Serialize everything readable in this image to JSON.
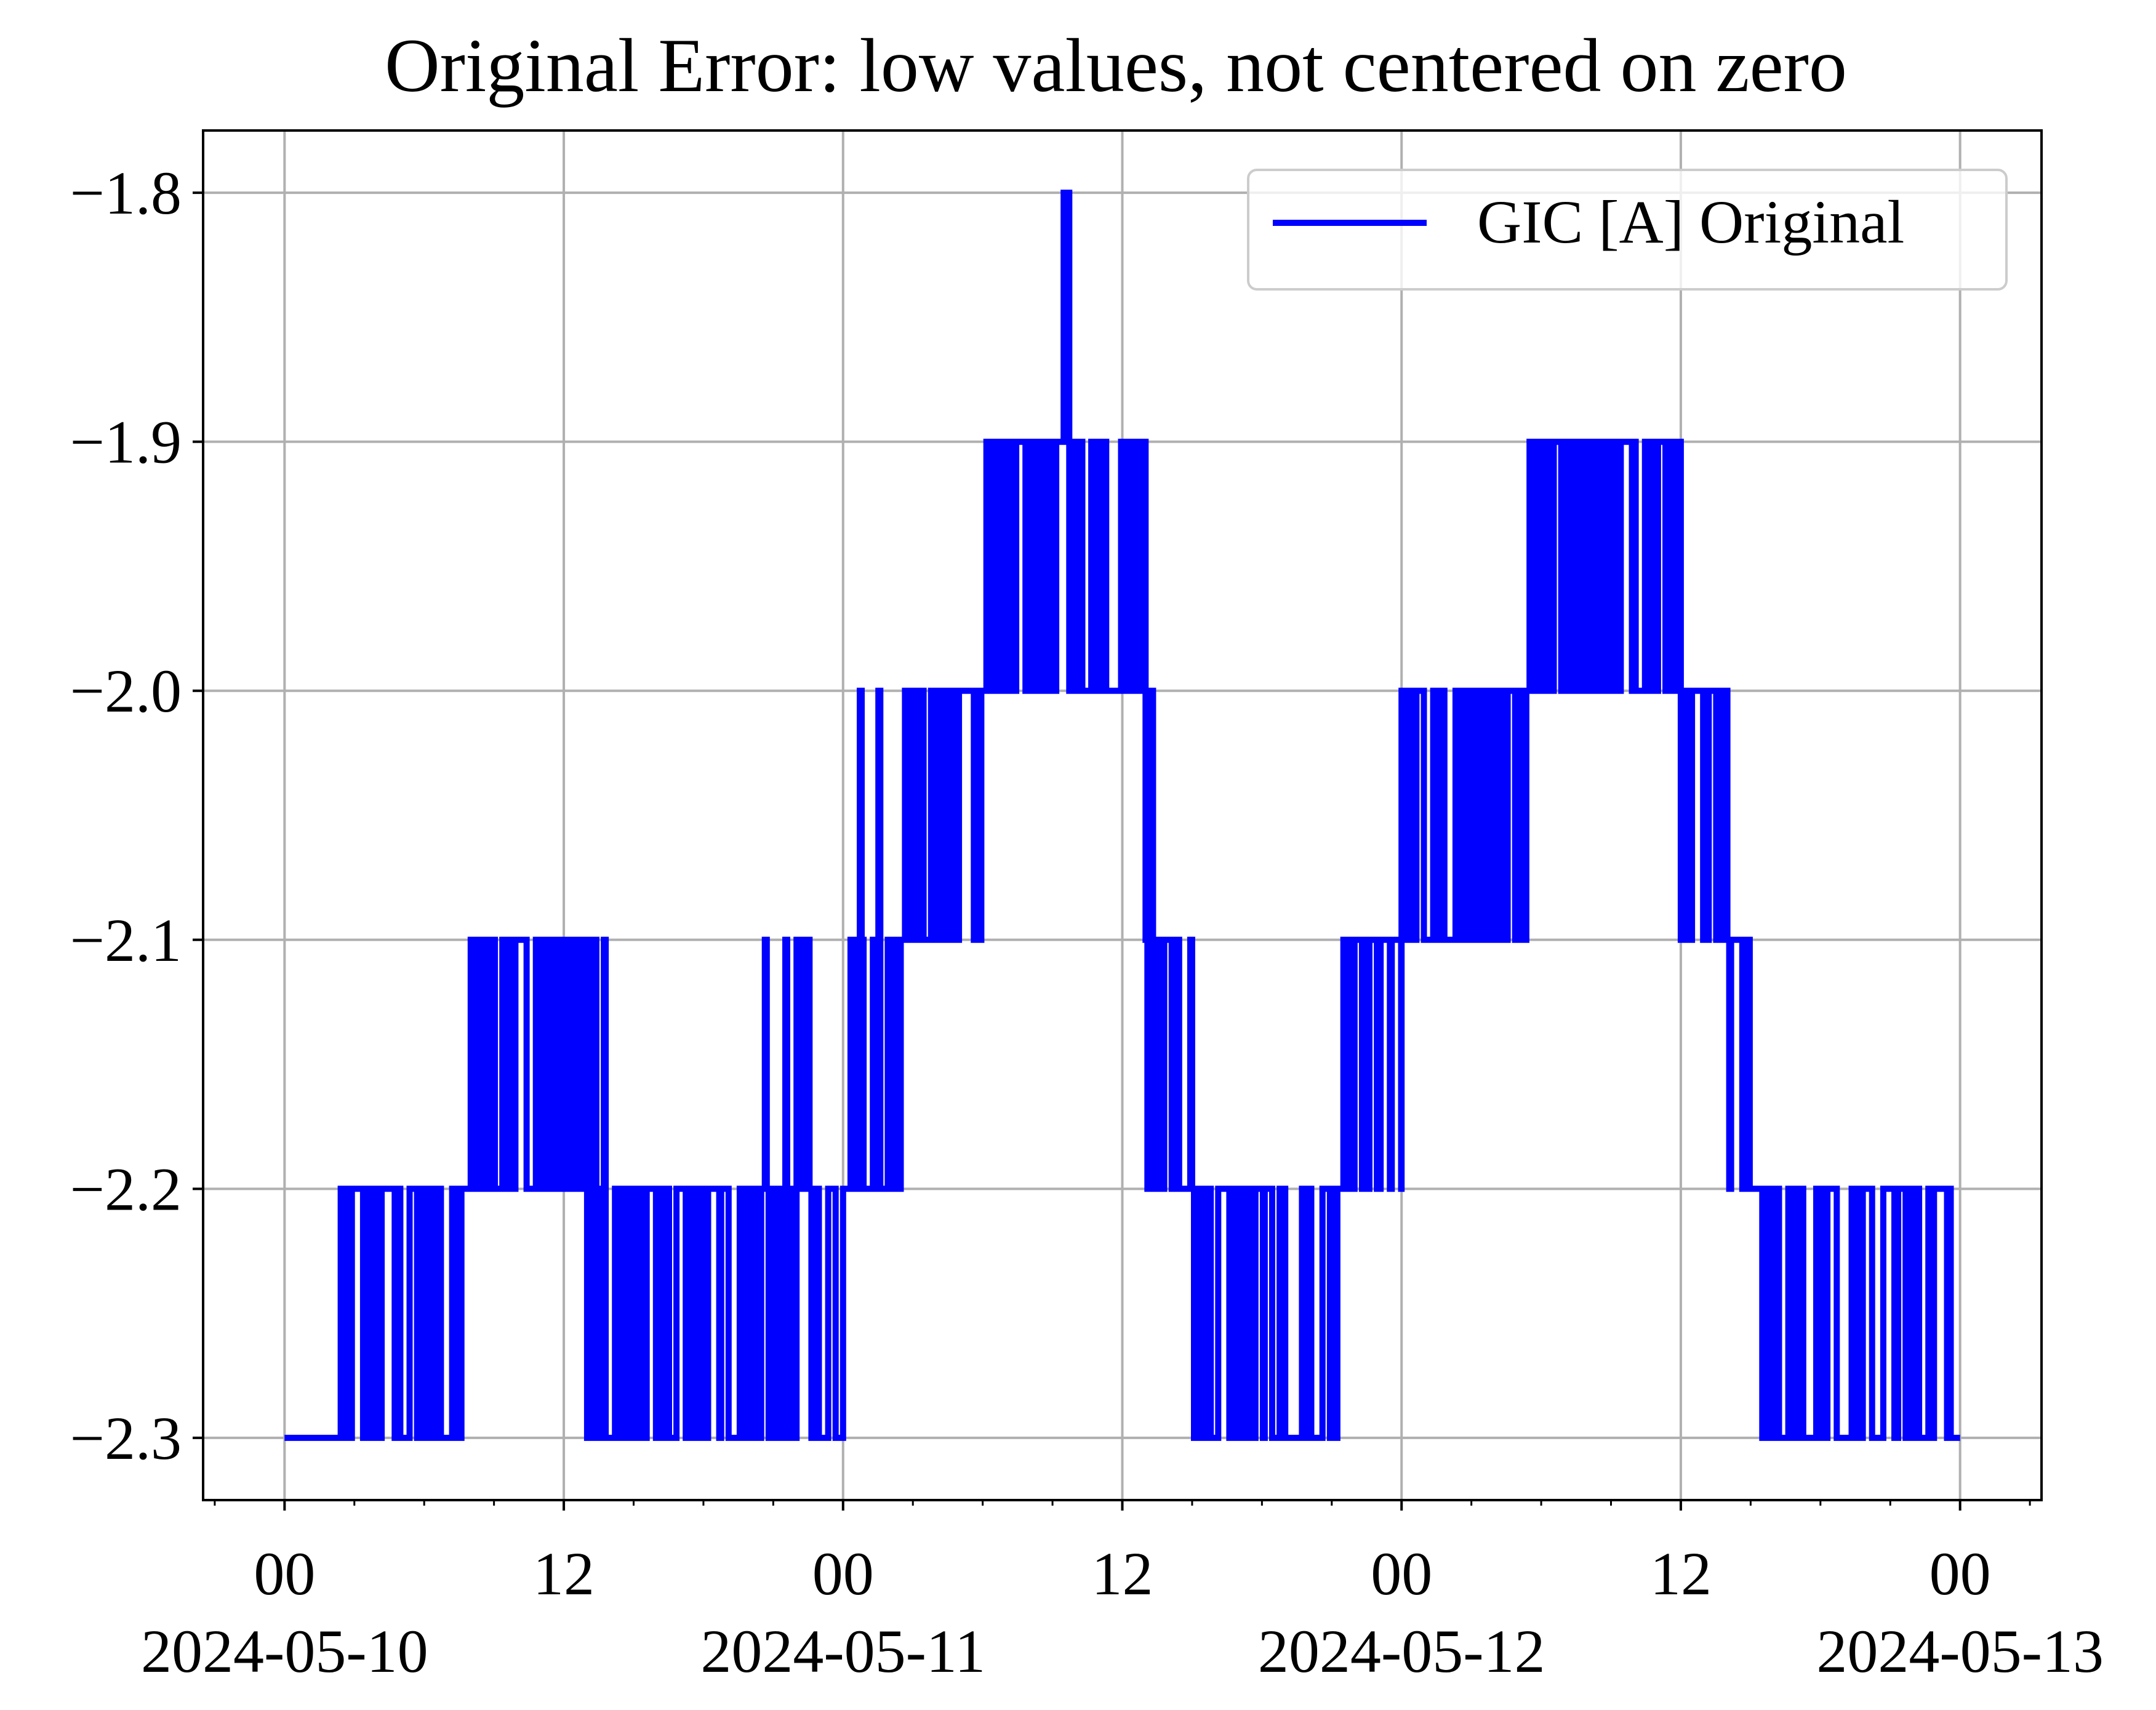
{
  "chart_data": {
    "type": "line",
    "title": "Original Error: low values, not centered on zero",
    "xlabel": "",
    "ylabel": "",
    "x_type": "datetime",
    "xlim": [
      "2024-05-09T20:30",
      "2024-05-13T03:30"
    ],
    "ylim": [
      -2.325,
      -1.775
    ],
    "y_ticks": [
      -2.3,
      -2.2,
      -2.1,
      -2.0,
      -1.9,
      -1.8
    ],
    "y_tick_labels": [
      "−2.3",
      "−2.2",
      "−2.1",
      "−2.0",
      "−1.9",
      "−1.8"
    ],
    "x_ticks": [
      {
        "t": "2024-05-10T00:00",
        "hour": "00",
        "date": "2024-05-10"
      },
      {
        "t": "2024-05-10T12:00",
        "hour": "12",
        "date": ""
      },
      {
        "t": "2024-05-11T00:00",
        "hour": "00",
        "date": "2024-05-11"
      },
      {
        "t": "2024-05-11T12:00",
        "hour": "12",
        "date": ""
      },
      {
        "t": "2024-05-12T00:00",
        "hour": "00",
        "date": "2024-05-12"
      },
      {
        "t": "2024-05-12T12:00",
        "hour": "12",
        "date": ""
      },
      {
        "t": "2024-05-13T00:00",
        "hour": "00",
        "date": "2024-05-13"
      }
    ],
    "minor_tick_hours": 3,
    "grid": true,
    "legend": {
      "position": "top-right",
      "entries": [
        "GIC [A] Original"
      ]
    },
    "series": [
      {
        "name": "GIC [A] Original",
        "color": "#0000ff",
        "step_segments": [
          {
            "from": "2024-05-10T00:00",
            "to": "2024-05-10T02:20",
            "min": -2.3,
            "max": -2.3
          },
          {
            "from": "2024-05-10T02:20",
            "to": "2024-05-10T06:00",
            "min": -2.3,
            "max": -2.2
          },
          {
            "from": "2024-05-10T06:00",
            "to": "2024-05-10T08:00",
            "min": -2.3,
            "max": -2.2
          },
          {
            "from": "2024-05-10T08:00",
            "to": "2024-05-10T13:00",
            "min": -2.2,
            "max": -2.1
          },
          {
            "from": "2024-05-10T13:00",
            "to": "2024-05-10T15:00",
            "min": -2.3,
            "max": -2.1
          },
          {
            "from": "2024-05-10T15:00",
            "to": "2024-05-10T20:00",
            "min": -2.3,
            "max": -2.2
          },
          {
            "from": "2024-05-10T20:00",
            "to": "2024-05-11T00:00",
            "min": -2.3,
            "max": -2.1
          },
          {
            "from": "2024-05-11T00:00",
            "to": "2024-05-11T02:30",
            "min": -2.2,
            "max": -2.0
          },
          {
            "from": "2024-05-11T02:30",
            "to": "2024-05-11T06:00",
            "min": -2.1,
            "max": -2.0
          },
          {
            "from": "2024-05-11T06:00",
            "to": "2024-05-11T09:00",
            "min": -2.0,
            "max": -1.9
          },
          {
            "from": "2024-05-11T09:00",
            "to": "2024-05-11T10:40",
            "min": -2.0,
            "max": -1.8
          },
          {
            "from": "2024-05-11T10:40",
            "to": "2024-05-11T13:00",
            "min": -2.0,
            "max": -1.9
          },
          {
            "from": "2024-05-11T13:00",
            "to": "2024-05-11T15:00",
            "min": -2.2,
            "max": -2.0
          },
          {
            "from": "2024-05-11T15:00",
            "to": "2024-05-11T21:30",
            "min": -2.3,
            "max": -2.2
          },
          {
            "from": "2024-05-11T21:30",
            "to": "2024-05-12T00:00",
            "min": -2.2,
            "max": -2.1
          },
          {
            "from": "2024-05-12T00:00",
            "to": "2024-05-12T05:30",
            "min": -2.1,
            "max": -2.0
          },
          {
            "from": "2024-05-12T05:30",
            "to": "2024-05-12T12:00",
            "min": -2.0,
            "max": -1.9
          },
          {
            "from": "2024-05-12T12:00",
            "to": "2024-05-12T14:00",
            "min": -2.1,
            "max": -2.0
          },
          {
            "from": "2024-05-12T14:00",
            "to": "2024-05-12T15:30",
            "min": -2.2,
            "max": -2.1
          },
          {
            "from": "2024-05-12T15:30",
            "to": "2024-05-12T22:00",
            "min": -2.3,
            "max": -2.2
          },
          {
            "from": "2024-05-12T22:00",
            "to": "2024-05-13T00:00",
            "min": -2.3,
            "max": -2.2
          }
        ]
      }
    ]
  }
}
